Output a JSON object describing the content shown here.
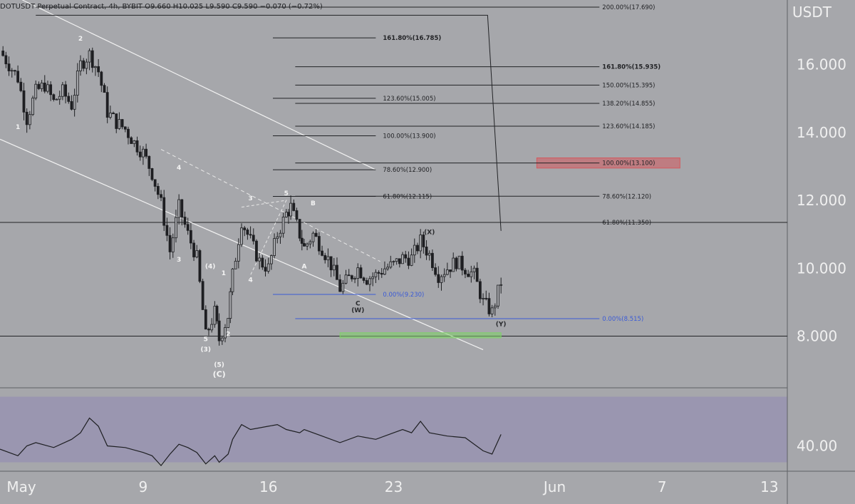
{
  "header": {
    "symbol": "DOTUSDT Perpetual Contract, 4h, BYBIT",
    "open": "O9.660",
    "high": "H10.025",
    "low": "L9.590",
    "close": "C9.590",
    "change": "−0.070 (−0.72%)"
  },
  "colors": {
    "background": "#a6a7ab",
    "rsi_band": "#9a96b0",
    "candle": "#1e1f22",
    "fib_line": "#222326",
    "fib_zero": "#3b5bd6",
    "target_zone": "#d35a5f",
    "support_zone": "#7fd16a",
    "channel": "#f2f2f2"
  },
  "chart_data": {
    "type": "candlestick",
    "title": "DOTUSDT Perpetual Contract, 4h, BYBIT",
    "price_axis": {
      "unit": "USDT",
      "range": [
        6.5,
        17.9
      ],
      "ticks": [
        {
          "value": 16,
          "label": "16.000"
        },
        {
          "value": 14,
          "label": "14.000"
        },
        {
          "value": 12,
          "label": "12.000"
        },
        {
          "value": 10,
          "label": "10.000"
        },
        {
          "value": 8,
          "label": "8.000"
        }
      ]
    },
    "time_axis": {
      "range": [
        "2021-05-01",
        "2021-06-14"
      ],
      "ticks": [
        {
          "date": "2021-05-01",
          "label": "May"
        },
        {
          "date": "2021-05-09",
          "label": "9"
        },
        {
          "date": "2021-05-16",
          "label": "16"
        },
        {
          "date": "2021-05-23",
          "label": "23"
        },
        {
          "date": "2021-06-01",
          "label": "Jun"
        },
        {
          "date": "2021-06-07",
          "label": "7"
        },
        {
          "date": "2021-06-13",
          "label": "13"
        }
      ]
    },
    "price_path": [
      [
        "2021-05-01",
        16.4
      ],
      [
        "2021-05-02",
        15.6
      ],
      [
        "2021-05-02T12:00",
        14.4
      ],
      [
        "2021-05-03",
        15.2
      ],
      [
        "2021-05-03T12:00",
        15.4
      ],
      [
        "2021-05-04",
        14.9
      ],
      [
        "2021-05-04T12:00",
        15.2
      ],
      [
        "2021-05-05",
        14.8
      ],
      [
        "2021-05-05T12:00",
        16.0
      ],
      [
        "2021-05-06",
        16.3
      ],
      [
        "2021-05-06T12:00",
        15.8
      ],
      [
        "2021-05-07",
        14.6
      ],
      [
        "2021-05-07T12:00",
        14.3
      ],
      [
        "2021-05-08",
        14.1
      ],
      [
        "2021-05-08T12:00",
        13.7
      ],
      [
        "2021-05-09",
        13.4
      ],
      [
        "2021-05-09T12:00",
        12.8
      ],
      [
        "2021-05-10",
        11.9
      ],
      [
        "2021-05-10T12:00",
        10.5
      ],
      [
        "2021-05-11",
        11.8
      ],
      [
        "2021-05-11T12:00",
        11.0
      ],
      [
        "2021-05-12",
        10.3
      ],
      [
        "2021-05-12T12:00",
        8.0
      ],
      [
        "2021-05-13",
        8.7
      ],
      [
        "2021-05-13T06:00",
        7.9
      ],
      [
        "2021-05-13T18:00",
        8.6
      ],
      [
        "2021-05-14",
        9.8
      ],
      [
        "2021-05-14T12:00",
        11.4
      ],
      [
        "2021-05-15",
        10.8
      ],
      [
        "2021-05-15T12:00",
        10.2
      ],
      [
        "2021-05-16",
        10.0
      ],
      [
        "2021-05-16T12:00",
        11.0
      ],
      [
        "2021-05-17",
        11.6
      ],
      [
        "2021-05-17T06:00",
        11.8
      ],
      [
        "2021-05-17T18:00",
        11.0
      ],
      [
        "2021-05-18",
        10.6
      ],
      [
        "2021-05-18T12:00",
        11.0
      ],
      [
        "2021-05-19",
        10.6
      ],
      [
        "2021-05-19T12:00",
        10.1
      ],
      [
        "2021-05-20",
        9.4
      ],
      [
        "2021-05-20T12:00",
        9.7
      ],
      [
        "2021-05-21",
        10.0
      ],
      [
        "2021-05-21T12:00",
        9.7
      ],
      [
        "2021-05-22",
        9.8
      ],
      [
        "2021-05-22T12:00",
        10.0
      ],
      [
        "2021-05-23",
        10.1
      ],
      [
        "2021-05-23T12:00",
        10.3
      ],
      [
        "2021-05-24",
        10.3
      ],
      [
        "2021-05-24T12:00",
        10.8
      ],
      [
        "2021-05-25",
        10.4
      ],
      [
        "2021-05-25T12:00",
        9.8
      ],
      [
        "2021-05-26",
        10.0
      ],
      [
        "2021-05-26T12:00",
        10.2
      ],
      [
        "2021-05-27",
        10.0
      ],
      [
        "2021-05-27T12:00",
        9.8
      ],
      [
        "2021-05-28",
        9.0
      ],
      [
        "2021-05-28T12:00",
        8.7
      ],
      [
        "2021-05-29",
        9.6
      ]
    ],
    "horizontal_lines": [
      11.35,
      8.0
    ],
    "fib_set_1": [
      {
        "value": 16.785,
        "label": "161.80%(16.785)",
        "bold": true
      },
      {
        "value": 15.005,
        "label": "123.60%(15.005)",
        "bold": false
      },
      {
        "value": 13.9,
        "label": "100.00%(13.900)",
        "bold": false
      },
      {
        "value": 12.9,
        "label": "78.60%(12.900)",
        "bold": false
      },
      {
        "value": 12.115,
        "label": "61.80%(12.115)",
        "bold": false
      },
      {
        "value": 9.23,
        "label": "0.00%(9.230)",
        "bold": false,
        "zero": true
      }
    ],
    "fib_set_2": [
      {
        "value": 17.69,
        "label": "200.00%(17.690)",
        "bold": false
      },
      {
        "value": 15.935,
        "label": "161.80%(15.935)",
        "bold": true
      },
      {
        "value": 15.395,
        "label": "150.00%(15.395)",
        "bold": false
      },
      {
        "value": 14.855,
        "label": "138.20%(14.855)",
        "bold": false
      },
      {
        "value": 14.185,
        "label": "123.60%(14.185)",
        "bold": false
      },
      {
        "value": 13.1,
        "label": "100.00%(13.100)",
        "bold": false
      },
      {
        "value": 12.12,
        "label": "78.60%(12.120)",
        "bold": false
      },
      {
        "value": 11.35,
        "label": "61.80%(11.350)",
        "bold": false
      },
      {
        "value": 8.515,
        "label": "0.00%(8.515)",
        "bold": false,
        "zero": true
      }
    ],
    "zones": [
      {
        "name": "target",
        "from": "2021-05-31",
        "to": "2021-06-08",
        "low": 12.95,
        "high": 13.25
      },
      {
        "name": "support",
        "from": "2021-05-20",
        "to": "2021-05-29",
        "low": 7.95,
        "high": 8.1
      }
    ],
    "wave_labels": [
      {
        "text": "1",
        "date": "2021-05-02",
        "price": 14.1
      },
      {
        "text": "2",
        "date": "2021-05-05T12:00",
        "price": 16.7
      },
      {
        "text": "3",
        "date": "2021-05-11",
        "price": 10.2
      },
      {
        "text": "4",
        "date": "2021-05-11",
        "price": 12.9
      },
      {
        "text": "(4)",
        "date": "2021-05-12T18:00",
        "price": 10.0
      },
      {
        "text": "5",
        "date": "2021-05-12T12:00",
        "price": 7.85
      },
      {
        "text": "(3)",
        "date": "2021-05-12T12:00",
        "price": 7.55
      },
      {
        "text": "(5)",
        "date": "2021-05-13T06:00",
        "price": 7.1
      },
      {
        "text": "(C)",
        "date": "2021-05-13T06:00",
        "price": 6.8
      },
      {
        "text": "1",
        "date": "2021-05-13T12:00",
        "price": 9.8
      },
      {
        "text": "2",
        "date": "2021-05-13T18:00",
        "price": 8.0
      },
      {
        "text": "3",
        "date": "2021-05-15",
        "price": 12.0
      },
      {
        "text": "4",
        "date": "2021-05-15",
        "price": 9.6
      },
      {
        "text": "5",
        "date": "2021-05-17",
        "price": 12.15
      },
      {
        "text": "A",
        "date": "2021-05-18",
        "price": 10.0
      },
      {
        "text": "B",
        "date": "2021-05-18T12:00",
        "price": 11.85
      },
      {
        "text": "C",
        "date": "2021-05-21",
        "price": 8.9
      },
      {
        "text": "(W)",
        "date": "2021-05-21",
        "price": 8.7
      },
      {
        "text": "(X)",
        "date": "2021-05-25",
        "price": 11.0
      },
      {
        "text": "(Y)",
        "date": "2021-05-29",
        "price": 8.3
      }
    ],
    "rsi": {
      "tick": {
        "value": 40,
        "label": "40.00"
      },
      "range": [
        25,
        75
      ],
      "band": [
        30,
        70
      ],
      "path": [
        [
          "2021-05-01",
          38
        ],
        [
          "2021-05-02",
          34
        ],
        [
          "2021-05-02T12:00",
          40
        ],
        [
          "2021-05-03",
          42
        ],
        [
          "2021-05-04",
          39
        ],
        [
          "2021-05-05",
          44
        ],
        [
          "2021-05-05T12:00",
          48
        ],
        [
          "2021-05-06",
          57
        ],
        [
          "2021-05-06T12:00",
          52
        ],
        [
          "2021-05-07",
          40
        ],
        [
          "2021-05-08",
          39
        ],
        [
          "2021-05-09",
          36
        ],
        [
          "2021-05-09T12:00",
          34
        ],
        [
          "2021-05-10",
          28
        ],
        [
          "2021-05-10T12:00",
          35
        ],
        [
          "2021-05-11",
          41
        ],
        [
          "2021-05-11T12:00",
          39
        ],
        [
          "2021-05-12",
          36
        ],
        [
          "2021-05-12T12:00",
          29
        ],
        [
          "2021-05-13",
          34
        ],
        [
          "2021-05-13T06:00",
          30
        ],
        [
          "2021-05-13T18:00",
          35
        ],
        [
          "2021-05-14",
          44
        ],
        [
          "2021-05-14T12:00",
          53
        ],
        [
          "2021-05-15",
          50
        ],
        [
          "2021-05-16",
          52
        ],
        [
          "2021-05-16T12:00",
          53
        ],
        [
          "2021-05-17",
          50
        ],
        [
          "2021-05-17T18:00",
          48
        ],
        [
          "2021-05-18",
          50
        ],
        [
          "2021-05-19",
          46
        ],
        [
          "2021-05-20",
          42
        ],
        [
          "2021-05-21",
          46
        ],
        [
          "2021-05-22",
          44
        ],
        [
          "2021-05-23",
          48
        ],
        [
          "2021-05-23T12:00",
          50
        ],
        [
          "2021-05-24",
          48
        ],
        [
          "2021-05-24T12:00",
          55
        ],
        [
          "2021-05-25",
          48
        ],
        [
          "2021-05-26",
          46
        ],
        [
          "2021-05-27",
          45
        ],
        [
          "2021-05-28",
          37
        ],
        [
          "2021-05-28T12:00",
          35
        ],
        [
          "2021-05-29",
          47
        ]
      ]
    }
  }
}
